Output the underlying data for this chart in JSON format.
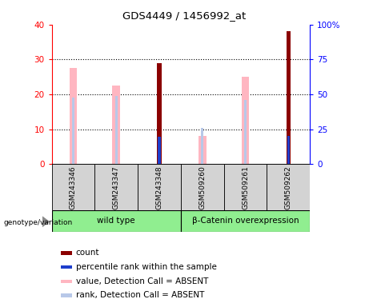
{
  "title": "GDS4449 / 1456992_at",
  "samples": [
    "GSM243346",
    "GSM243347",
    "GSM243348",
    "GSM509260",
    "GSM509261",
    "GSM509262"
  ],
  "groups": [
    {
      "label": "wild type",
      "indices": [
        0,
        1,
        2
      ],
      "color": "#90EE90"
    },
    {
      "label": "β-Catenin overexpression",
      "indices": [
        3,
        4,
        5
      ],
      "color": "#90EE90"
    }
  ],
  "count_values": [
    null,
    null,
    29,
    null,
    null,
    38
  ],
  "percentile_rank_values": [
    null,
    null,
    19.5,
    null,
    null,
    20.5
  ],
  "absent_value": [
    27.5,
    22.5,
    null,
    8,
    25,
    null
  ],
  "absent_rank": [
    19,
    19.5,
    null,
    10.5,
    18.5,
    null
  ],
  "ylim_left": [
    0,
    40
  ],
  "ylim_right": [
    0,
    100
  ],
  "yticks_left": [
    0,
    10,
    20,
    30,
    40
  ],
  "yticks_right": [
    0,
    25,
    50,
    75,
    100
  ],
  "ytick_labels_right": [
    "0",
    "25",
    "50",
    "75",
    "100%"
  ],
  "colors": {
    "count": "#8B0000",
    "percentile": "#1E3ECC",
    "absent_value": "#FFB6C1",
    "absent_rank": "#B8C8E8",
    "label_box_bg": "#D3D3D3",
    "group_box_bg": "#90EE90"
  },
  "legend_items": [
    {
      "color": "#8B0000",
      "label": "count"
    },
    {
      "color": "#1E3ECC",
      "label": "percentile rank within the sample"
    },
    {
      "color": "#FFB6C1",
      "label": "value, Detection Call = ABSENT"
    },
    {
      "color": "#B8C8E8",
      "label": "rank, Detection Call = ABSENT"
    }
  ]
}
